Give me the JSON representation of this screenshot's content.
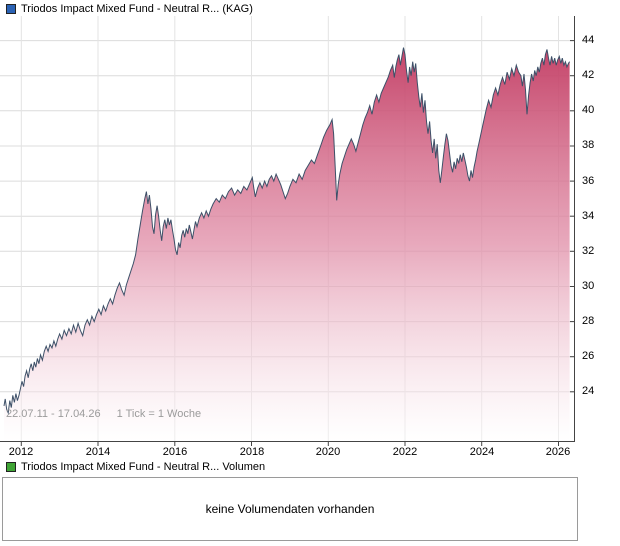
{
  "header": {
    "legend_label": "Triodos Impact Mixed Fund - Neutral R... (KAG)",
    "legend_color": "#2a62b4"
  },
  "volume": {
    "legend_label": "Triodos Impact Mixed Fund - Neutral R... Volumen",
    "legend_color": "#3fa435",
    "message": "keine Volumendaten vorhanden"
  },
  "chart_data": {
    "type": "area",
    "title": "Triodos Impact Mixed Fund - Neutral R... (KAG)",
    "range_label": "22.07.11 - 17.04.26",
    "tick_label": "1 Tick = 1 Woche",
    "x_domain": [
      2011.55,
      2026.3
    ],
    "ylim": [
      21.2,
      45.4
    ],
    "y_ticks": [
      24,
      26,
      28,
      30,
      32,
      34,
      36,
      38,
      40,
      42,
      44
    ],
    "x_ticks": [
      2012,
      2014,
      2016,
      2018,
      2020,
      2022,
      2024,
      2026
    ],
    "grid": true,
    "legend_position": "top-left",
    "line_color": "#3d5068",
    "fill_top": "#c23b62",
    "fill_mid": "#e08ca6",
    "fill_bottom": "#ffffff",
    "points": [
      [
        2011.55,
        23.2
      ],
      [
        2011.58,
        23.6
      ],
      [
        2011.62,
        23.0
      ],
      [
        2011.66,
        22.8
      ],
      [
        2011.7,
        23.5
      ],
      [
        2011.74,
        23.1
      ],
      [
        2011.78,
        23.8
      ],
      [
        2011.82,
        23.4
      ],
      [
        2011.86,
        23.9
      ],
      [
        2011.9,
        23.5
      ],
      [
        2011.94,
        23.8
      ],
      [
        2011.98,
        24.2
      ],
      [
        2012.02,
        24.6
      ],
      [
        2012.06,
        24.3
      ],
      [
        2012.1,
        24.9
      ],
      [
        2012.14,
        25.2
      ],
      [
        2012.18,
        24.8
      ],
      [
        2012.22,
        25.3
      ],
      [
        2012.26,
        25.6
      ],
      [
        2012.3,
        25.2
      ],
      [
        2012.34,
        25.7
      ],
      [
        2012.38,
        25.4
      ],
      [
        2012.42,
        25.9
      ],
      [
        2012.46,
        25.6
      ],
      [
        2012.5,
        26.1
      ],
      [
        2012.55,
        25.8
      ],
      [
        2012.6,
        26.3
      ],
      [
        2012.65,
        26.6
      ],
      [
        2012.7,
        26.3
      ],
      [
        2012.75,
        26.7
      ],
      [
        2012.8,
        26.5
      ],
      [
        2012.85,
        26.9
      ],
      [
        2012.9,
        26.6
      ],
      [
        2012.95,
        27.0
      ],
      [
        2013.0,
        27.3
      ],
      [
        2013.06,
        27.0
      ],
      [
        2013.12,
        27.5
      ],
      [
        2013.18,
        27.2
      ],
      [
        2013.24,
        27.6
      ],
      [
        2013.3,
        27.3
      ],
      [
        2013.36,
        27.8
      ],
      [
        2013.42,
        27.4
      ],
      [
        2013.48,
        27.9
      ],
      [
        2013.54,
        27.5
      ],
      [
        2013.6,
        27.2
      ],
      [
        2013.66,
        27.8
      ],
      [
        2013.72,
        28.1
      ],
      [
        2013.78,
        27.8
      ],
      [
        2013.84,
        28.3
      ],
      [
        2013.9,
        28.0
      ],
      [
        2013.96,
        28.4
      ],
      [
        2014.02,
        28.7
      ],
      [
        2014.08,
        28.4
      ],
      [
        2014.14,
        28.9
      ],
      [
        2014.2,
        28.6
      ],
      [
        2014.26,
        29.0
      ],
      [
        2014.32,
        29.3
      ],
      [
        2014.38,
        29.0
      ],
      [
        2014.44,
        29.5
      ],
      [
        2014.5,
        29.9
      ],
      [
        2014.56,
        30.2
      ],
      [
        2014.62,
        29.8
      ],
      [
        2014.68,
        29.5
      ],
      [
        2014.74,
        30.1
      ],
      [
        2014.8,
        30.5
      ],
      [
        2014.86,
        30.9
      ],
      [
        2014.92,
        31.3
      ],
      [
        2014.98,
        31.8
      ],
      [
        2015.04,
        32.7
      ],
      [
        2015.1,
        33.5
      ],
      [
        2015.16,
        34.3
      ],
      [
        2015.22,
        35.0
      ],
      [
        2015.26,
        35.4
      ],
      [
        2015.3,
        34.7
      ],
      [
        2015.34,
        35.2
      ],
      [
        2015.38,
        34.4
      ],
      [
        2015.42,
        33.4
      ],
      [
        2015.46,
        33.0
      ],
      [
        2015.5,
        34.1
      ],
      [
        2015.54,
        34.6
      ],
      [
        2015.58,
        34.0
      ],
      [
        2015.62,
        33.2
      ],
      [
        2015.66,
        32.6
      ],
      [
        2015.7,
        33.4
      ],
      [
        2015.74,
        33.8
      ],
      [
        2015.78,
        33.3
      ],
      [
        2015.82,
        33.9
      ],
      [
        2015.86,
        33.5
      ],
      [
        2015.9,
        33.8
      ],
      [
        2015.94,
        33.2
      ],
      [
        2015.98,
        32.7
      ],
      [
        2016.02,
        32.1
      ],
      [
        2016.06,
        31.8
      ],
      [
        2016.1,
        32.5
      ],
      [
        2016.14,
        32.2
      ],
      [
        2016.18,
        32.9
      ],
      [
        2016.22,
        33.2
      ],
      [
        2016.26,
        32.8
      ],
      [
        2016.3,
        33.3
      ],
      [
        2016.34,
        33.0
      ],
      [
        2016.38,
        33.5
      ],
      [
        2016.42,
        33.1
      ],
      [
        2016.46,
        32.7
      ],
      [
        2016.5,
        33.2
      ],
      [
        2016.54,
        33.7
      ],
      [
        2016.58,
        33.4
      ],
      [
        2016.64,
        33.9
      ],
      [
        2016.7,
        34.2
      ],
      [
        2016.76,
        33.9
      ],
      [
        2016.82,
        34.3
      ],
      [
        2016.88,
        34.0
      ],
      [
        2016.94,
        34.4
      ],
      [
        2017.0,
        34.7
      ],
      [
        2017.08,
        35.0
      ],
      [
        2017.16,
        34.8
      ],
      [
        2017.24,
        35.2
      ],
      [
        2017.32,
        35.0
      ],
      [
        2017.4,
        35.4
      ],
      [
        2017.48,
        35.6
      ],
      [
        2017.56,
        35.2
      ],
      [
        2017.64,
        35.5
      ],
      [
        2017.72,
        35.3
      ],
      [
        2017.8,
        35.7
      ],
      [
        2017.88,
        35.5
      ],
      [
        2017.96,
        35.9
      ],
      [
        2018.02,
        36.2
      ],
      [
        2018.06,
        35.6
      ],
      [
        2018.1,
        35.1
      ],
      [
        2018.16,
        35.6
      ],
      [
        2018.22,
        35.9
      ],
      [
        2018.28,
        35.6
      ],
      [
        2018.34,
        36.0
      ],
      [
        2018.4,
        35.7
      ],
      [
        2018.46,
        36.1
      ],
      [
        2018.52,
        36.3
      ],
      [
        2018.58,
        36.0
      ],
      [
        2018.64,
        36.4
      ],
      [
        2018.7,
        36.1
      ],
      [
        2018.76,
        35.8
      ],
      [
        2018.82,
        35.4
      ],
      [
        2018.88,
        35.0
      ],
      [
        2018.94,
        35.3
      ],
      [
        2019.0,
        35.7
      ],
      [
        2019.08,
        36.1
      ],
      [
        2019.16,
        35.9
      ],
      [
        2019.24,
        36.4
      ],
      [
        2019.32,
        36.1
      ],
      [
        2019.4,
        36.6
      ],
      [
        2019.48,
        36.9
      ],
      [
        2019.56,
        37.2
      ],
      [
        2019.64,
        37.0
      ],
      [
        2019.72,
        37.5
      ],
      [
        2019.8,
        38.0
      ],
      [
        2019.88,
        38.5
      ],
      [
        2019.96,
        38.9
      ],
      [
        2020.04,
        39.2
      ],
      [
        2020.1,
        39.5
      ],
      [
        2020.14,
        38.7
      ],
      [
        2020.18,
        36.8
      ],
      [
        2020.22,
        34.9
      ],
      [
        2020.26,
        35.8
      ],
      [
        2020.3,
        36.4
      ],
      [
        2020.36,
        37.0
      ],
      [
        2020.42,
        37.4
      ],
      [
        2020.48,
        37.8
      ],
      [
        2020.54,
        38.1
      ],
      [
        2020.6,
        38.4
      ],
      [
        2020.66,
        38.1
      ],
      [
        2020.72,
        37.7
      ],
      [
        2020.78,
        38.2
      ],
      [
        2020.84,
        38.7
      ],
      [
        2020.9,
        39.2
      ],
      [
        2020.96,
        39.6
      ],
      [
        2021.02,
        39.9
      ],
      [
        2021.08,
        40.3
      ],
      [
        2021.14,
        39.8
      ],
      [
        2021.2,
        40.5
      ],
      [
        2021.26,
        40.9
      ],
      [
        2021.32,
        40.5
      ],
      [
        2021.38,
        41.0
      ],
      [
        2021.44,
        41.3
      ],
      [
        2021.5,
        41.6
      ],
      [
        2021.56,
        41.9
      ],
      [
        2021.62,
        42.3
      ],
      [
        2021.68,
        42.6
      ],
      [
        2021.72,
        41.9
      ],
      [
        2021.76,
        42.5
      ],
      [
        2021.8,
        42.9
      ],
      [
        2021.84,
        43.2
      ],
      [
        2021.88,
        42.6
      ],
      [
        2021.92,
        43.1
      ],
      [
        2021.96,
        43.6
      ],
      [
        2022.0,
        43.2
      ],
      [
        2022.04,
        42.3
      ],
      [
        2022.08,
        41.6
      ],
      [
        2022.12,
        42.5
      ],
      [
        2022.16,
        42.0
      ],
      [
        2022.2,
        42.8
      ],
      [
        2022.24,
        42.2
      ],
      [
        2022.28,
        42.7
      ],
      [
        2022.32,
        41.6
      ],
      [
        2022.36,
        40.8
      ],
      [
        2022.4,
        40.2
      ],
      [
        2022.44,
        41.0
      ],
      [
        2022.48,
        39.9
      ],
      [
        2022.52,
        40.6
      ],
      [
        2022.56,
        39.4
      ],
      [
        2022.6,
        38.7
      ],
      [
        2022.64,
        39.4
      ],
      [
        2022.68,
        38.3
      ],
      [
        2022.72,
        37.6
      ],
      [
        2022.76,
        38.4
      ],
      [
        2022.8,
        37.3
      ],
      [
        2022.84,
        38.1
      ],
      [
        2022.88,
        36.6
      ],
      [
        2022.92,
        35.9
      ],
      [
        2022.96,
        36.6
      ],
      [
        2023.0,
        37.4
      ],
      [
        2023.04,
        38.1
      ],
      [
        2023.08,
        38.7
      ],
      [
        2023.12,
        38.3
      ],
      [
        2023.16,
        37.6
      ],
      [
        2023.2,
        36.9
      ],
      [
        2023.24,
        36.5
      ],
      [
        2023.28,
        37.1
      ],
      [
        2023.32,
        36.7
      ],
      [
        2023.36,
        37.3
      ],
      [
        2023.4,
        37.0
      ],
      [
        2023.44,
        37.5
      ],
      [
        2023.48,
        37.1
      ],
      [
        2023.52,
        37.6
      ],
      [
        2023.56,
        37.2
      ],
      [
        2023.6,
        36.8
      ],
      [
        2023.64,
        36.3
      ],
      [
        2023.68,
        36.0
      ],
      [
        2023.72,
        36.6
      ],
      [
        2023.76,
        36.2
      ],
      [
        2023.8,
        36.8
      ],
      [
        2023.84,
        37.2
      ],
      [
        2023.88,
        37.7
      ],
      [
        2023.92,
        38.1
      ],
      [
        2023.96,
        38.5
      ],
      [
        2024.0,
        38.9
      ],
      [
        2024.06,
        39.5
      ],
      [
        2024.12,
        40.1
      ],
      [
        2024.18,
        40.6
      ],
      [
        2024.24,
        40.2
      ],
      [
        2024.3,
        40.9
      ],
      [
        2024.36,
        41.3
      ],
      [
        2024.42,
        40.9
      ],
      [
        2024.48,
        41.5
      ],
      [
        2024.54,
        41.9
      ],
      [
        2024.6,
        41.5
      ],
      [
        2024.66,
        42.2
      ],
      [
        2024.72,
        41.8
      ],
      [
        2024.78,
        42.4
      ],
      [
        2024.84,
        42.0
      ],
      [
        2024.9,
        42.6
      ],
      [
        2024.96,
        42.2
      ],
      [
        2025.02,
        42.0
      ],
      [
        2025.06,
        41.4
      ],
      [
        2025.1,
        42.1
      ],
      [
        2025.14,
        41.2
      ],
      [
        2025.18,
        39.8
      ],
      [
        2025.22,
        40.9
      ],
      [
        2025.26,
        41.6
      ],
      [
        2025.3,
        42.1
      ],
      [
        2025.34,
        41.7
      ],
      [
        2025.38,
        42.3
      ],
      [
        2025.42,
        42.0
      ],
      [
        2025.46,
        42.5
      ],
      [
        2025.5,
        42.2
      ],
      [
        2025.54,
        42.7
      ],
      [
        2025.58,
        43.0
      ],
      [
        2025.62,
        42.6
      ],
      [
        2025.66,
        43.2
      ],
      [
        2025.7,
        43.5
      ],
      [
        2025.74,
        43.0
      ],
      [
        2025.78,
        42.6
      ],
      [
        2025.82,
        43.1
      ],
      [
        2025.86,
        42.7
      ],
      [
        2025.9,
        43.0
      ],
      [
        2025.94,
        42.6
      ],
      [
        2025.98,
        42.9
      ],
      [
        2026.02,
        43.1
      ],
      [
        2026.06,
        42.7
      ],
      [
        2026.1,
        43.0
      ],
      [
        2026.14,
        42.6
      ],
      [
        2026.18,
        42.8
      ],
      [
        2026.22,
        42.5
      ],
      [
        2026.26,
        42.7
      ],
      [
        2026.29,
        42.8
      ]
    ]
  }
}
